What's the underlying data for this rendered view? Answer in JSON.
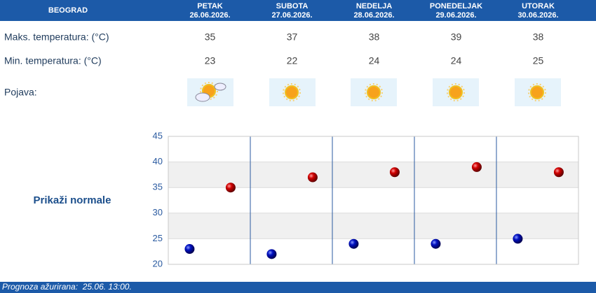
{
  "header": {
    "city": "BEOGRAD",
    "days": [
      {
        "name": "PETAK",
        "date": "26.06.2026."
      },
      {
        "name": "SUBOTA",
        "date": "27.06.2026."
      },
      {
        "name": "NEDELJA",
        "date": "28.06.2026."
      },
      {
        "name": "PONEDELJAK",
        "date": "29.06.2026."
      },
      {
        "name": "UTORAK",
        "date": "30.06.2026."
      }
    ]
  },
  "rows": {
    "max_label": "Maks. temperatura: (°C)",
    "min_label": "Min. temperatura: (°C)",
    "weather_label": "Pojava:"
  },
  "link": "Prikaži normale",
  "footer": "Prognoza ažurirana:  25.06. 13:00.",
  "chart_data": {
    "type": "scatter",
    "series": [
      {
        "color": "#cc0000",
        "values": [
          35,
          37,
          38,
          39,
          38
        ]
      },
      {
        "color": "#0000b0",
        "values": [
          23,
          22,
          24,
          24,
          25
        ]
      }
    ],
    "ylim": [
      20,
      45
    ],
    "yticks": [
      20,
      25,
      30,
      35,
      40,
      45
    ],
    "grid": true
  }
}
